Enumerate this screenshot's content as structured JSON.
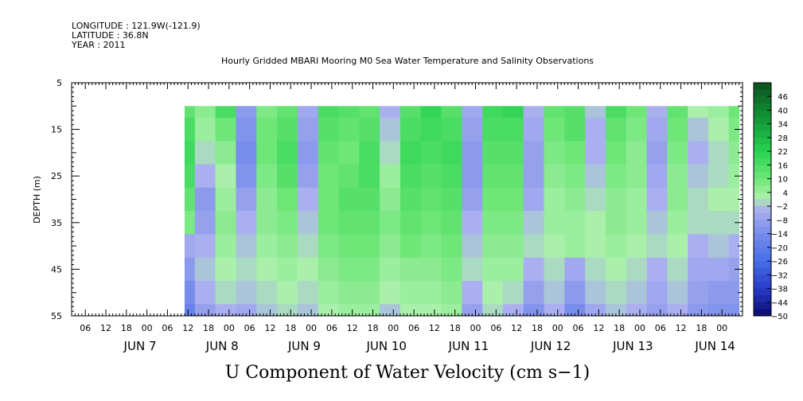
{
  "header": {
    "longitude": "LONGITUDE : 121.9W(-121.9)",
    "latitude": "LATITUDE : 36.8N",
    "year": "YEAR : 2011"
  },
  "chart_data": {
    "type": "heatmap",
    "title": "Hourly Gridded MBARI Mooring M0 Sea Water Temperature and Salinity Observations",
    "xlabel": "U Component of Water Velocity (cm s−1)",
    "ylabel": "DEPTH (m)",
    "ylim": [
      55,
      5
    ],
    "y_ticks": [
      5,
      15,
      25,
      35,
      45,
      55
    ],
    "y_tick_labels": [
      "5",
      "15",
      "25",
      "35",
      "45",
      "55"
    ],
    "x_hour_labels": [
      "06",
      "12",
      "18",
      "00",
      "06",
      "12",
      "18",
      "00",
      "06",
      "12",
      "18",
      "00",
      "06",
      "12",
      "18",
      "00",
      "06",
      "12",
      "18",
      "00",
      "06",
      "12",
      "18",
      "00",
      "06",
      "12",
      "18",
      "00",
      "06",
      "12",
      "18",
      "00"
    ],
    "x_date_labels": [
      "JUN  7",
      "JUN  8",
      "JUN  9",
      "JUN 10",
      "JUN 11",
      "JUN 12",
      "JUN 13",
      "JUN 14"
    ],
    "x_range": [
      "2011-06-06 02:00",
      "2011-06-14 06:00"
    ],
    "data_extent": {
      "time_start": "2011-06-07 11:00",
      "time_end": "2011-06-14 05:00",
      "depth_top": 10,
      "depth_bottom": 55
    },
    "colorbar": {
      "levels": [
        46,
        40,
        34,
        28,
        22,
        16,
        10,
        4,
        -2,
        -8,
        -14,
        -20,
        -26,
        -32,
        -38,
        -44,
        -50
      ],
      "labels": [
        "46",
        "40",
        "34",
        "28",
        "22",
        "16",
        "10",
        "4",
        "−2",
        "−8",
        "−14",
        "−20",
        "−26",
        "−32",
        "−38",
        "−44",
        "−50"
      ],
      "max": 52,
      "min": -50,
      "step": 3
    },
    "depth_levels": [
      10,
      15,
      20,
      25,
      30,
      35,
      40,
      45,
      50,
      55
    ],
    "column_times_hours_since_jun7_00": [
      11,
      17,
      23,
      29,
      35,
      41,
      47,
      53,
      59,
      65,
      71,
      77,
      83,
      89,
      95,
      101,
      107,
      113,
      119,
      125,
      131,
      137,
      143,
      149,
      155,
      161,
      167,
      173
    ],
    "values_rows_by_depth": [
      [
        12,
        6,
        16,
        -10,
        8,
        12,
        -6,
        16,
        14,
        12,
        -4,
        14,
        20,
        14,
        -6,
        18,
        20,
        -4,
        12,
        14,
        -2,
        16,
        10,
        -4,
        12,
        2,
        4,
        10
      ],
      [
        16,
        4,
        10,
        -12,
        10,
        14,
        -8,
        14,
        12,
        14,
        -2,
        16,
        18,
        16,
        -8,
        16,
        16,
        -6,
        10,
        14,
        -4,
        12,
        8,
        -6,
        10,
        -2,
        2,
        8
      ],
      [
        18,
        0,
        6,
        -14,
        10,
        16,
        -10,
        12,
        10,
        16,
        0,
        18,
        16,
        18,
        -10,
        14,
        14,
        -8,
        8,
        10,
        -4,
        10,
        6,
        -8,
        8,
        -4,
        0,
        6
      ],
      [
        16,
        -4,
        2,
        -12,
        8,
        14,
        -8,
        10,
        12,
        16,
        4,
        16,
        14,
        16,
        -10,
        12,
        12,
        -8,
        6,
        8,
        -2,
        8,
        6,
        -6,
        6,
        -2,
        0,
        4
      ],
      [
        12,
        -10,
        4,
        -8,
        6,
        10,
        -4,
        10,
        14,
        14,
        6,
        14,
        12,
        14,
        -8,
        10,
        10,
        -6,
        4,
        6,
        0,
        6,
        4,
        -4,
        6,
        0,
        2,
        2
      ],
      [
        8,
        -8,
        6,
        -4,
        6,
        8,
        -2,
        10,
        12,
        12,
        8,
        12,
        10,
        12,
        -4,
        8,
        8,
        -2,
        4,
        4,
        2,
        6,
        4,
        -2,
        4,
        0,
        0,
        0
      ],
      [
        -6,
        -4,
        4,
        -2,
        4,
        6,
        0,
        8,
        10,
        10,
        6,
        10,
        8,
        10,
        -2,
        6,
        6,
        0,
        2,
        4,
        2,
        4,
        2,
        0,
        2,
        -4,
        -2,
        -4
      ],
      [
        -10,
        -2,
        2,
        0,
        2,
        4,
        2,
        6,
        8,
        8,
        4,
        6,
        6,
        8,
        0,
        4,
        4,
        -4,
        0,
        -6,
        0,
        2,
        0,
        -4,
        0,
        -6,
        -6,
        -8
      ],
      [
        -14,
        -4,
        0,
        -2,
        0,
        2,
        0,
        4,
        6,
        6,
        2,
        4,
        4,
        6,
        -4,
        2,
        0,
        -8,
        -2,
        -10,
        -2,
        0,
        -2,
        -6,
        -2,
        -8,
        -10,
        -10
      ],
      [
        -18,
        -8,
        -4,
        -6,
        -2,
        0,
        -2,
        2,
        4,
        4,
        -2,
        2,
        2,
        4,
        -8,
        0,
        -4,
        -12,
        -4,
        -14,
        -6,
        -2,
        -4,
        -8,
        -4,
        -10,
        -12,
        -12
      ]
    ]
  }
}
